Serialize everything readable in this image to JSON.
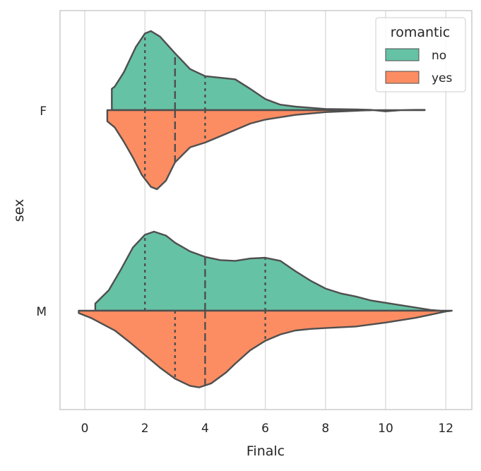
{
  "chart_data": {
    "type": "violin",
    "split": true,
    "orientation": "horizontal",
    "xlabel": "Finalc",
    "ylabel": "sex",
    "xlim": [
      -0.8,
      12.8
    ],
    "x_ticks": [
      "0",
      "2",
      "4",
      "6",
      "8",
      "10",
      "12"
    ],
    "categories": [
      "F",
      "M"
    ],
    "legend": {
      "title": "romantic",
      "placement": "top-right",
      "entries": [
        {
          "label": "no",
          "color": "#66c2a5"
        },
        {
          "label": "yes",
          "color": "#fc8d62"
        }
      ]
    },
    "grid": "vertical",
    "series": [
      {
        "category": "F",
        "hue": "no",
        "side": "upper",
        "color": "#66c2a5",
        "range": [
          0.9,
          11.3
        ],
        "quartiles": [
          2,
          3,
          4
        ],
        "density": [
          [
            0.9,
            0.1
          ],
          [
            0.9,
            0.27
          ],
          [
            1.0,
            0.3
          ],
          [
            1.3,
            0.48
          ],
          [
            1.7,
            0.8
          ],
          [
            2.0,
            0.97
          ],
          [
            2.2,
            1.0
          ],
          [
            2.5,
            0.93
          ],
          [
            3.0,
            0.72
          ],
          [
            3.5,
            0.52
          ],
          [
            4.0,
            0.43
          ],
          [
            4.5,
            0.41
          ],
          [
            5.0,
            0.39
          ],
          [
            5.5,
            0.27
          ],
          [
            6.0,
            0.14
          ],
          [
            6.5,
            0.07
          ],
          [
            7.0,
            0.045
          ],
          [
            8.0,
            0.015
          ],
          [
            9.0,
            0.01
          ],
          [
            9.5,
            0.004
          ],
          [
            10.0,
            -0.015
          ],
          [
            10.5,
            0.0
          ],
          [
            11.0,
            0.004
          ],
          [
            11.3,
            0.004
          ]
        ]
      },
      {
        "category": "F",
        "hue": "yes",
        "side": "lower",
        "color": "#fc8d62",
        "range": [
          0.75,
          9.5
        ],
        "quartiles": [
          2,
          3,
          4
        ],
        "density": [
          [
            0.75,
            0.0
          ],
          [
            0.75,
            0.14
          ],
          [
            1.0,
            0.22
          ],
          [
            1.3,
            0.4
          ],
          [
            1.6,
            0.6
          ],
          [
            1.9,
            0.82
          ],
          [
            2.2,
            0.97
          ],
          [
            2.4,
            1.0
          ],
          [
            2.7,
            0.89
          ],
          [
            3.0,
            0.66
          ],
          [
            3.5,
            0.47
          ],
          [
            4.0,
            0.41
          ],
          [
            4.5,
            0.33
          ],
          [
            5.0,
            0.25
          ],
          [
            5.5,
            0.17
          ],
          [
            6.0,
            0.12
          ],
          [
            7.0,
            0.06
          ],
          [
            8.0,
            0.025
          ],
          [
            9.0,
            0.008
          ],
          [
            9.5,
            0.0
          ]
        ]
      },
      {
        "category": "M",
        "hue": "no",
        "side": "upper",
        "color": "#66c2a5",
        "range": [
          0.35,
          11.8
        ],
        "quartiles": [
          2,
          4,
          6
        ],
        "density": [
          [
            0.35,
            0.0
          ],
          [
            0.35,
            0.09
          ],
          [
            0.8,
            0.26
          ],
          [
            1.2,
            0.52
          ],
          [
            1.6,
            0.8
          ],
          [
            2.0,
            0.96
          ],
          [
            2.3,
            1.0
          ],
          [
            2.7,
            0.95
          ],
          [
            3.0,
            0.86
          ],
          [
            3.5,
            0.75
          ],
          [
            4.0,
            0.68
          ],
          [
            4.5,
            0.64
          ],
          [
            5.0,
            0.63
          ],
          [
            5.5,
            0.66
          ],
          [
            6.0,
            0.67
          ],
          [
            6.5,
            0.63
          ],
          [
            7.0,
            0.5
          ],
          [
            7.5,
            0.38
          ],
          [
            8.0,
            0.28
          ],
          [
            8.5,
            0.22
          ],
          [
            9.0,
            0.18
          ],
          [
            9.5,
            0.13
          ],
          [
            10.0,
            0.1
          ],
          [
            10.5,
            0.07
          ],
          [
            11.0,
            0.04
          ],
          [
            11.5,
            0.01
          ],
          [
            11.8,
            0.0
          ]
        ]
      },
      {
        "category": "M",
        "hue": "yes",
        "side": "lower",
        "color": "#fc8d62",
        "range": [
          -0.2,
          12.2
        ],
        "quartiles": [
          3,
          4,
          6
        ],
        "density": [
          [
            -0.2,
            0.0
          ],
          [
            -0.2,
            0.03
          ],
          [
            0.2,
            0.09
          ],
          [
            1.0,
            0.25
          ],
          [
            1.5,
            0.4
          ],
          [
            2.0,
            0.56
          ],
          [
            2.5,
            0.72
          ],
          [
            3.0,
            0.86
          ],
          [
            3.5,
            0.95
          ],
          [
            3.8,
            0.97
          ],
          [
            4.2,
            0.92
          ],
          [
            4.7,
            0.78
          ],
          [
            5.0,
            0.67
          ],
          [
            5.5,
            0.5
          ],
          [
            6.0,
            0.38
          ],
          [
            6.5,
            0.3
          ],
          [
            7.0,
            0.25
          ],
          [
            7.5,
            0.23
          ],
          [
            8.0,
            0.22
          ],
          [
            9.0,
            0.2
          ],
          [
            10.0,
            0.15
          ],
          [
            11.0,
            0.09
          ],
          [
            11.5,
            0.05
          ],
          [
            12.0,
            0.01
          ],
          [
            12.2,
            0.0
          ]
        ]
      }
    ]
  }
}
